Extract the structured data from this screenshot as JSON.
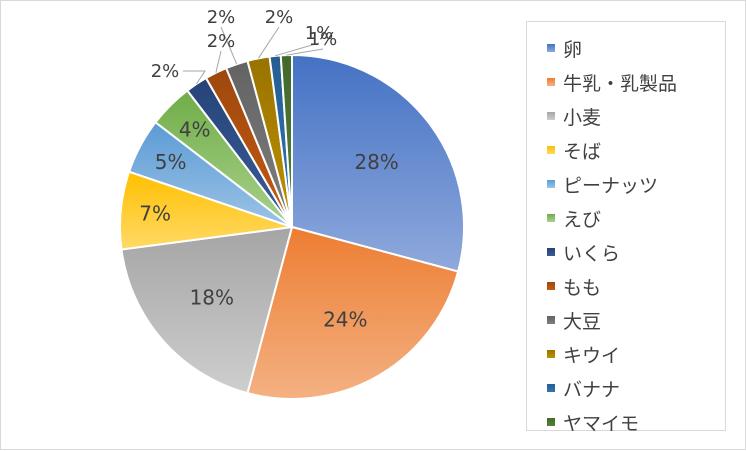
{
  "chart_data": {
    "type": "pie",
    "title": "",
    "legend_position": "right",
    "slices": [
      {
        "name": "卵",
        "value": 28,
        "label": "28%",
        "color": "#4472c4",
        "color_light": "#8fa9dc"
      },
      {
        "name": "牛乳・乳製品",
        "value": 24,
        "label": "24%",
        "color": "#ed7d31",
        "color_light": "#f4b183"
      },
      {
        "name": "小麦",
        "value": 18,
        "label": "18%",
        "color": "#a5a5a5",
        "color_light": "#cecece"
      },
      {
        "name": "そば",
        "value": 7,
        "label": "7%",
        "color": "#ffc000",
        "color_light": "#ffd966"
      },
      {
        "name": "ピーナッツ",
        "value": 5,
        "label": "5%",
        "color": "#5b9bd5",
        "color_light": "#9dc3e6"
      },
      {
        "name": "えび",
        "value": 4,
        "label": "4%",
        "color": "#70ad47",
        "color_light": "#a9d18e"
      },
      {
        "name": "いくら",
        "value": 2,
        "label": "2%",
        "color": "#264478",
        "color_light": "#3b5c99"
      },
      {
        "name": "もも",
        "value": 2,
        "label": "2%",
        "color": "#9e480e",
        "color_light": "#c55a11"
      },
      {
        "name": "大豆",
        "value": 2,
        "label": "2%",
        "color": "#636363",
        "color_light": "#7f7f7f"
      },
      {
        "name": "キウイ",
        "value": 2,
        "label": "2%",
        "color": "#997300",
        "color_light": "#bf9000"
      },
      {
        "name": "バナナ",
        "value": 1,
        "label": "1%",
        "color": "#255e91",
        "color_light": "#2e75b6"
      },
      {
        "name": "ヤマイモ",
        "value": 1,
        "label": "1%",
        "color": "#43682b",
        "color_light": "#548235"
      }
    ]
  }
}
